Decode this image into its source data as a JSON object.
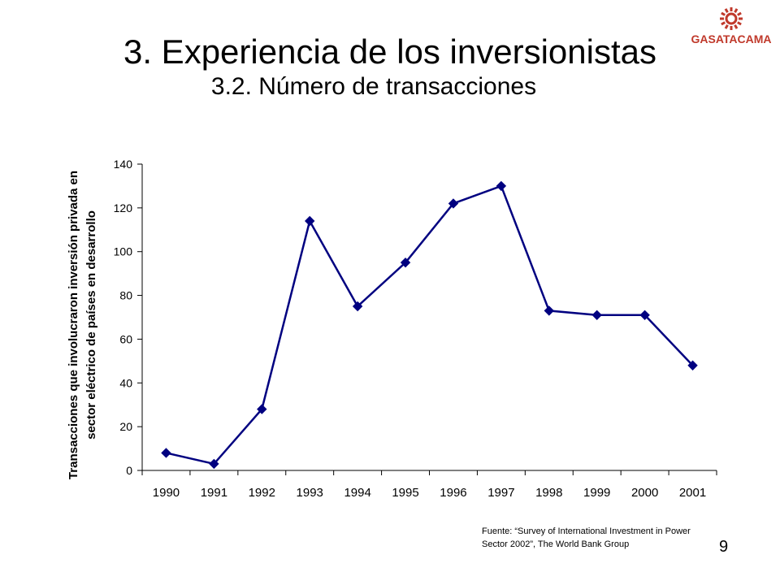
{
  "slide": {
    "title": "3. Experiencia de los inversionistas",
    "subtitle": "3.2. Número de transacciones",
    "logo_text": "GASATACAMA",
    "source_line1": "Fuente: “Survey of International Investment in Power",
    "source_line2": "Sector 2002”,  The World Bank Group",
    "page_number": "9"
  },
  "colors": {
    "series": "#000080",
    "logo": "#c0392b"
  },
  "chart_data": {
    "type": "line",
    "title": "",
    "xlabel": "",
    "ylabel_line1": "Transacciones que involucraron inversión privada en",
    "ylabel_line2": "sector eléctrico de países en desarrollo",
    "categories": [
      "1990",
      "1991",
      "1992",
      "1993",
      "1994",
      "1995",
      "1996",
      "1997",
      "1998",
      "1999",
      "2000",
      "2001"
    ],
    "values": [
      8,
      3,
      28,
      114,
      75,
      95,
      122,
      130,
      73,
      71,
      71,
      48
    ],
    "ylim": [
      0,
      140
    ],
    "yticks": [
      0,
      20,
      40,
      60,
      80,
      100,
      120,
      140
    ],
    "grid": false,
    "legend": "none",
    "marker": "diamond"
  }
}
